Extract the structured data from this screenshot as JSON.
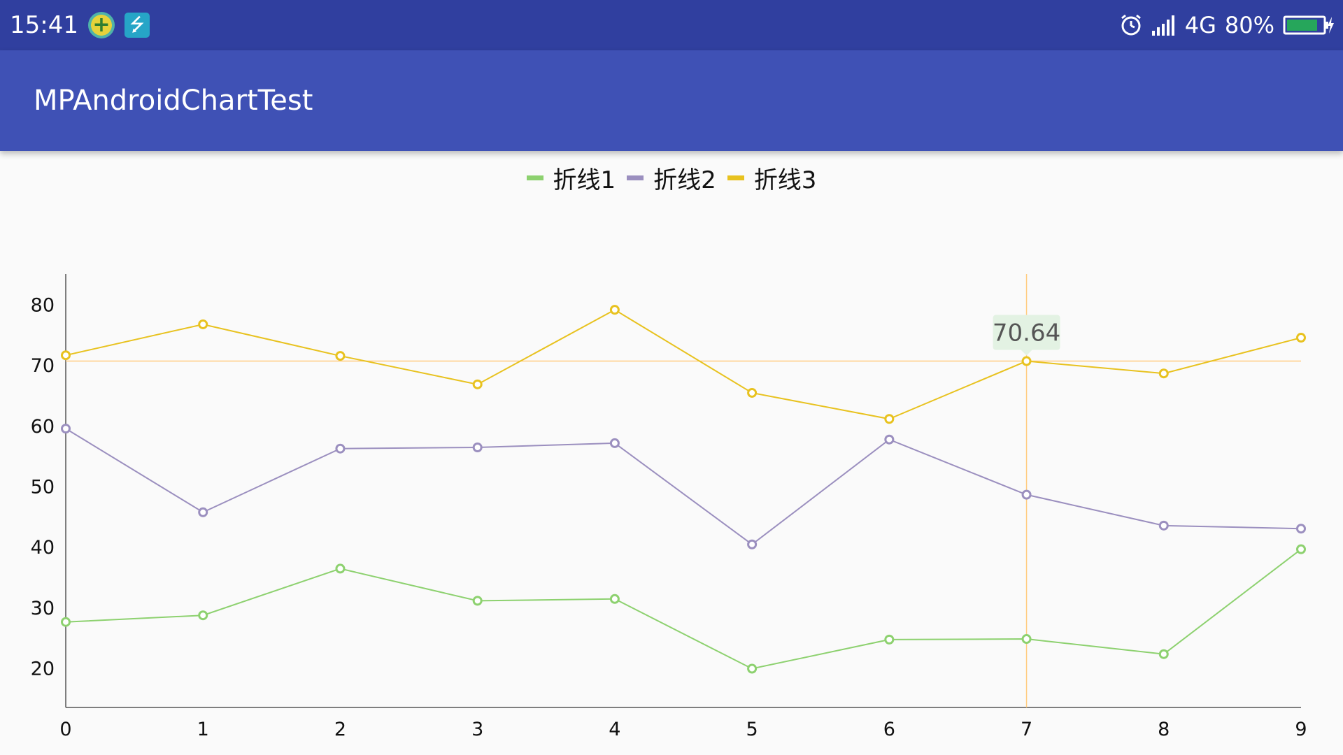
{
  "status_bar": {
    "time": "15:41",
    "network": "4G",
    "battery": "80%",
    "icons": [
      "plus-badge-icon",
      "usb-icon",
      "alarm-icon",
      "signal-icon",
      "battery-charging-icon"
    ]
  },
  "app_bar": {
    "title": "MPAndroidChartTest"
  },
  "colors": {
    "status_bar": "#303f9f",
    "app_bar": "#3f51b5",
    "highlight": "#ffcc80",
    "marker_bg": "#e3f2e3"
  },
  "chart_data": {
    "type": "line",
    "x": [
      0,
      1,
      2,
      3,
      4,
      5,
      6,
      7,
      8,
      9
    ],
    "xlim": [
      0,
      9
    ],
    "ylim": [
      13.5,
      85
    ],
    "y_ticks": [
      20,
      30,
      40,
      50,
      60,
      70,
      80
    ],
    "grid": false,
    "legend_position": "top-center",
    "series": [
      {
        "name": "折线1",
        "color": "#8dd16f",
        "values": [
          27.6,
          28.7,
          36.4,
          31.1,
          31.4,
          19.9,
          24.7,
          24.8,
          22.3,
          39.6
        ]
      },
      {
        "name": "折线2",
        "color": "#9b8fbf",
        "values": [
          59.5,
          45.7,
          56.2,
          56.4,
          57.1,
          40.4,
          57.7,
          48.6,
          43.5,
          43.0
        ]
      },
      {
        "name": "折线3",
        "color": "#e8c21f",
        "values": [
          71.6,
          76.7,
          71.5,
          66.8,
          79.1,
          65.4,
          61.1,
          70.64,
          68.6,
          74.5
        ]
      }
    ],
    "highlight": {
      "x": 7,
      "y": 70.64,
      "label": "70.64"
    }
  }
}
